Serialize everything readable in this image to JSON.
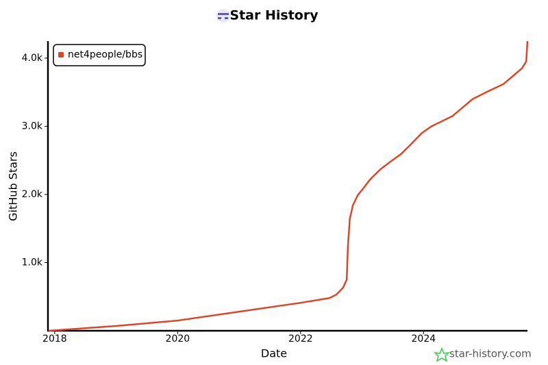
{
  "chart_data": {
    "type": "line",
    "title": "Star History",
    "x_label": "Date",
    "y_label": "GitHub Stars",
    "watermark": "star-history.com",
    "x": [
      2017.9,
      2019,
      2020,
      2021,
      2022,
      2022.47,
      2022.58,
      2022.69,
      2022.75,
      2022.77,
      2022.8,
      2022.85,
      2022.93,
      2023.02,
      2023.13,
      2023.3,
      2023.46,
      2023.63,
      2023.8,
      2023.97,
      2024.13,
      2024.47,
      2024.8,
      2025.02,
      2025.3,
      2025.47,
      2025.6,
      2025.67,
      2025.69
    ],
    "series": [
      {
        "name": "net4people/bbs",
        "color": "#dd4528",
        "values": [
          0,
          70,
          150,
          280,
          410,
          480,
          530,
          630,
          750,
          1240,
          1640,
          1840,
          1990,
          2090,
          2220,
          2370,
          2480,
          2590,
          2740,
          2900,
          3000,
          3150,
          3400,
          3500,
          3620,
          3750,
          3850,
          3950,
          4250
        ]
      }
    ],
    "xlim": [
      2017.89,
      2025.69
    ],
    "xticks": [
      2018,
      2020,
      2022,
      2024
    ],
    "ylim": [
      0,
      4250
    ],
    "yticks": [
      {
        "value": 1000,
        "label": "1.0k"
      },
      {
        "value": 2000,
        "label": "2.0k"
      },
      {
        "value": 3000,
        "label": "3.0k"
      },
      {
        "value": 4000,
        "label": "4.0k"
      }
    ],
    "grid": false,
    "legend": "upper left"
  }
}
